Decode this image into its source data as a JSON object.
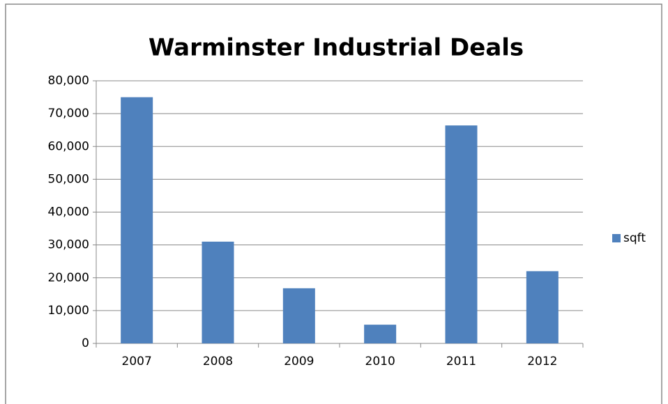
{
  "chart_data": {
    "type": "bar",
    "title": "Warminster Industrial Deals",
    "categories": [
      "2007",
      "2008",
      "2009",
      "2010",
      "2011",
      "2012"
    ],
    "series": [
      {
        "name": "sqft",
        "color": "#4f81bd",
        "values": [
          75000,
          31000,
          16800,
          5700,
          66400,
          22000
        ]
      }
    ],
    "ylim": [
      0,
      80000
    ],
    "yticks": [
      0,
      {
        "value": 10000,
        "label": "10,000"
      },
      {
        "value": 20000,
        "label": "20,000"
      },
      {
        "value": 30000,
        "label": "30,000"
      },
      {
        "value": 40000,
        "label": "40,000"
      },
      {
        "value": 50000,
        "label": "50,000"
      },
      {
        "value": 60000,
        "label": "60,000"
      },
      {
        "value": 70000,
        "label": "70,000"
      },
      {
        "value": 80000,
        "label": "80,000"
      }
    ],
    "grid": true,
    "legend": "right"
  }
}
